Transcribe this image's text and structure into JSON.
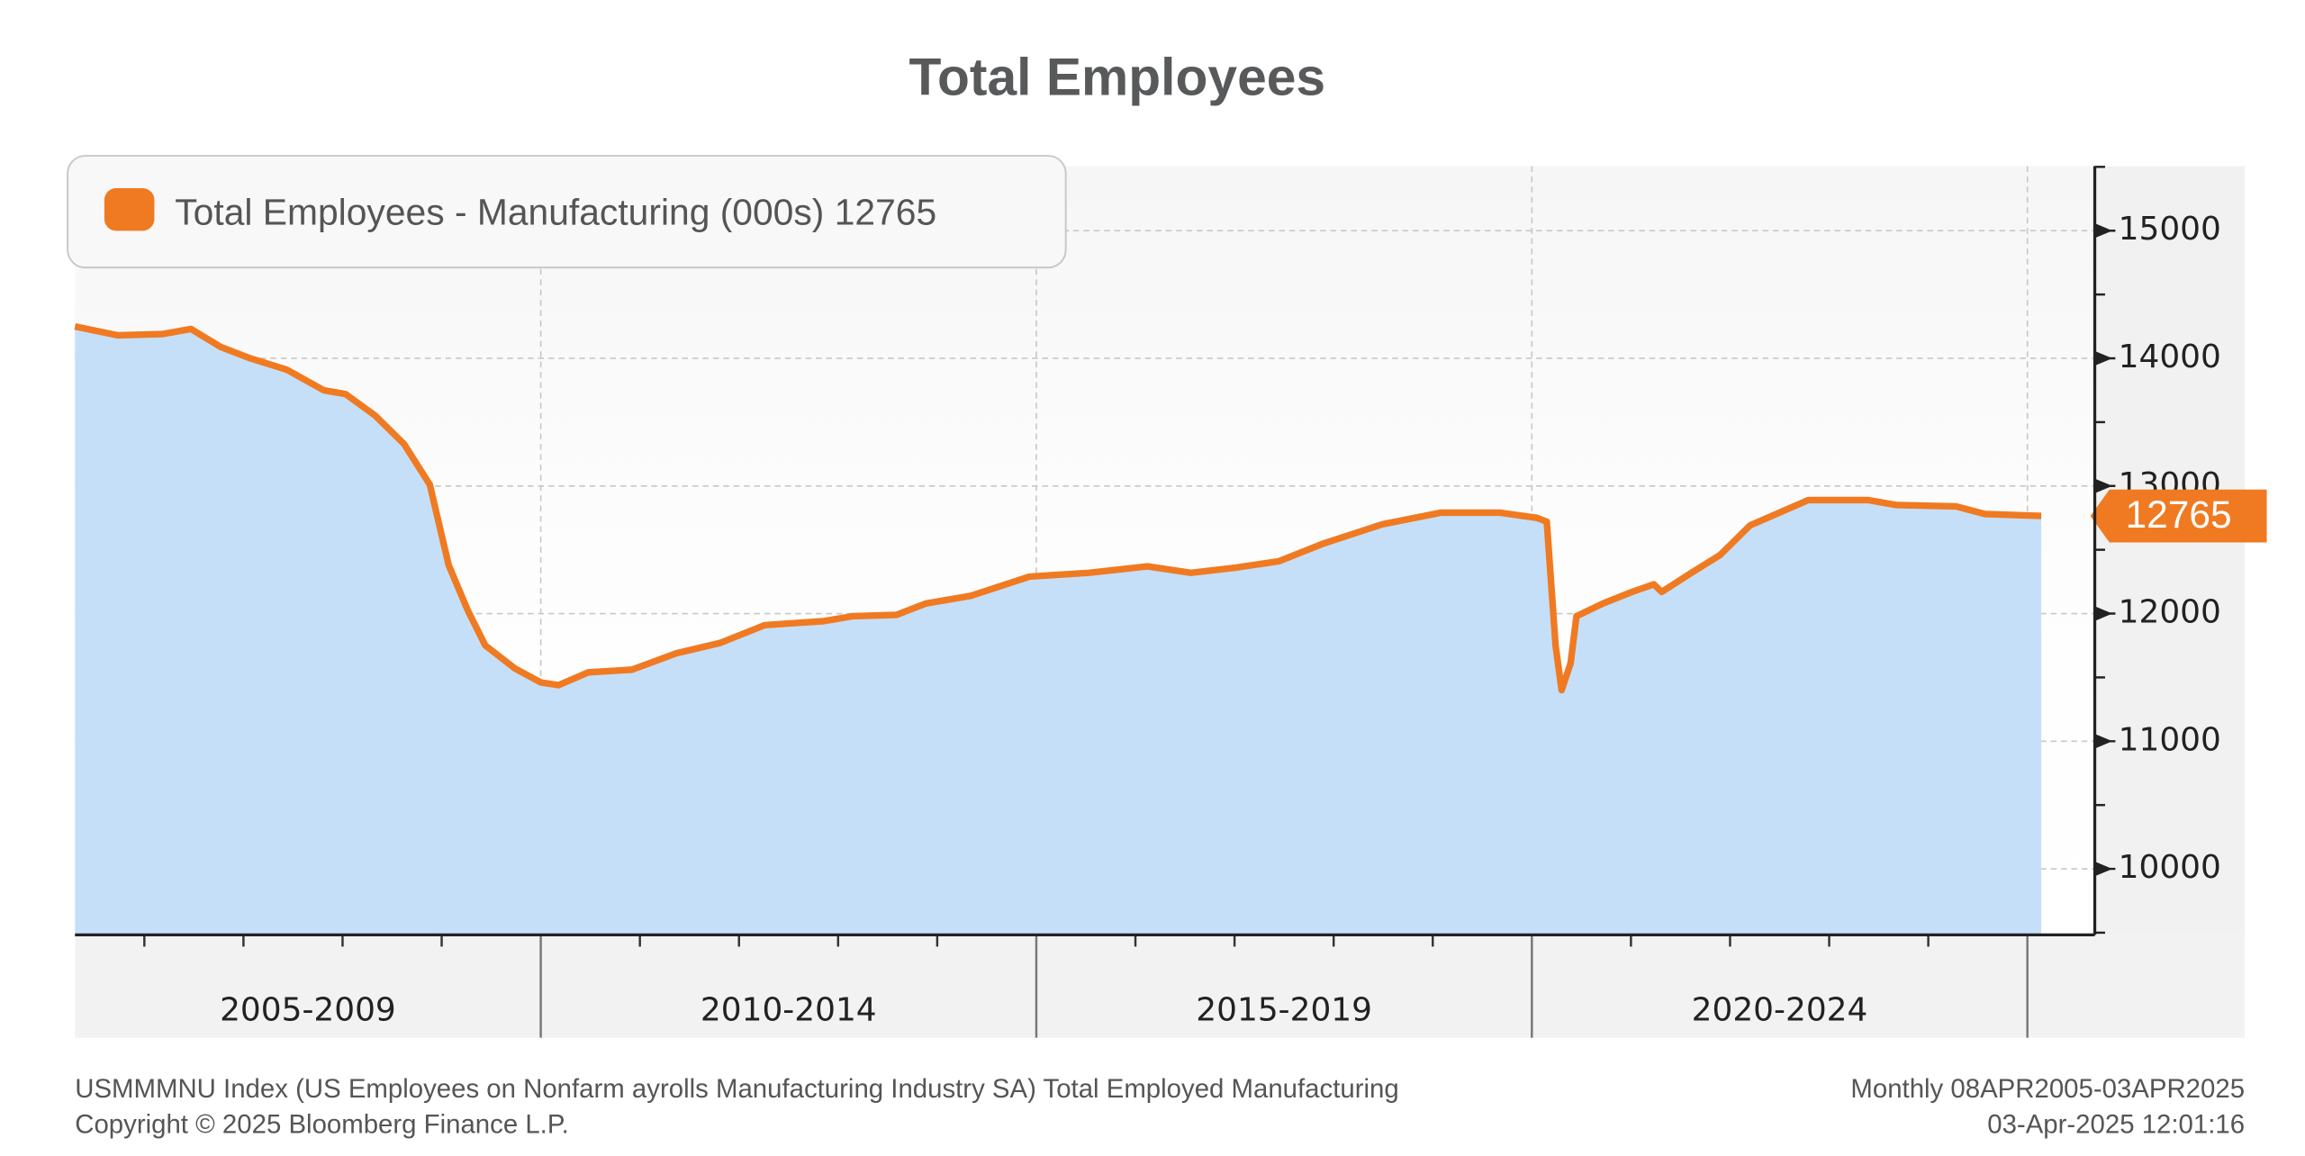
{
  "chart_data": {
    "type": "line",
    "title": "Total Employees",
    "x_periods": [
      {
        "label": "2005-2009",
        "start": 2005,
        "end": 2010
      },
      {
        "label": "2010-2014",
        "start": 2010,
        "end": 2015
      },
      {
        "label": "2015-2019",
        "start": 2015,
        "end": 2020
      },
      {
        "label": "2020-2024",
        "start": 2020,
        "end": 2025
      }
    ],
    "xlim": [
      2005.3,
      2025.68
    ],
    "ylim": [
      9483,
      15506
    ],
    "yticks": [
      10000,
      11000,
      12000,
      13000,
      14000,
      15000
    ],
    "grid": true,
    "legend": "top-left",
    "series": [
      {
        "name": "Total Employees - Manufacturing (000s)",
        "color": "#f07a22",
        "fill": "#c5dff8",
        "x": [
          2005.3,
          2005.73,
          2006.18,
          2006.47,
          2006.77,
          2007.07,
          2007.44,
          2007.81,
          2008.03,
          2008.33,
          2008.62,
          2008.88,
          2009.07,
          2009.26,
          2009.44,
          2009.74,
          2010.0,
          2010.18,
          2010.48,
          2010.92,
          2011.37,
          2011.81,
          2012.26,
          2012.85,
          2013.15,
          2013.59,
          2013.89,
          2014.34,
          2014.93,
          2015.53,
          2016.12,
          2016.56,
          2017.01,
          2017.45,
          2017.9,
          2018.49,
          2019.08,
          2019.68,
          2020.05,
          2020.15,
          2020.24,
          2020.3,
          2020.39,
          2020.45,
          2020.72,
          2021.01,
          2021.23,
          2021.31,
          2021.61,
          2021.9,
          2022.2,
          2022.79,
          2023.39,
          2023.68,
          2024.28,
          2024.57,
          2025.14
        ],
        "values": [
          14250,
          14180,
          14190,
          14230,
          14090,
          14000,
          13910,
          13750,
          13720,
          13550,
          13330,
          13010,
          12380,
          12030,
          11750,
          11570,
          11460,
          11440,
          11540,
          11560,
          11690,
          11770,
          11910,
          11940,
          11980,
          11990,
          12080,
          12140,
          12290,
          12320,
          12370,
          12320,
          12360,
          12410,
          12550,
          12700,
          12790,
          12790,
          12750,
          12720,
          11750,
          11400,
          11610,
          11980,
          12080,
          12170,
          12230,
          12170,
          12320,
          12460,
          12690,
          12890,
          12890,
          12850,
          12840,
          12780,
          12765
        ]
      }
    ],
    "footer": {
      "source": "USMMMNU Index (US Employees on Nonfarm ayrolls Manufacturing Industry SA) Total Employed Manufacturing",
      "copyright": "Copyright ©  2025 Bloomberg Finance L.P.",
      "range": "Monthly 08APR2005-03APR2025",
      "timestamp": "03-Apr-2025 12:01:16"
    }
  }
}
